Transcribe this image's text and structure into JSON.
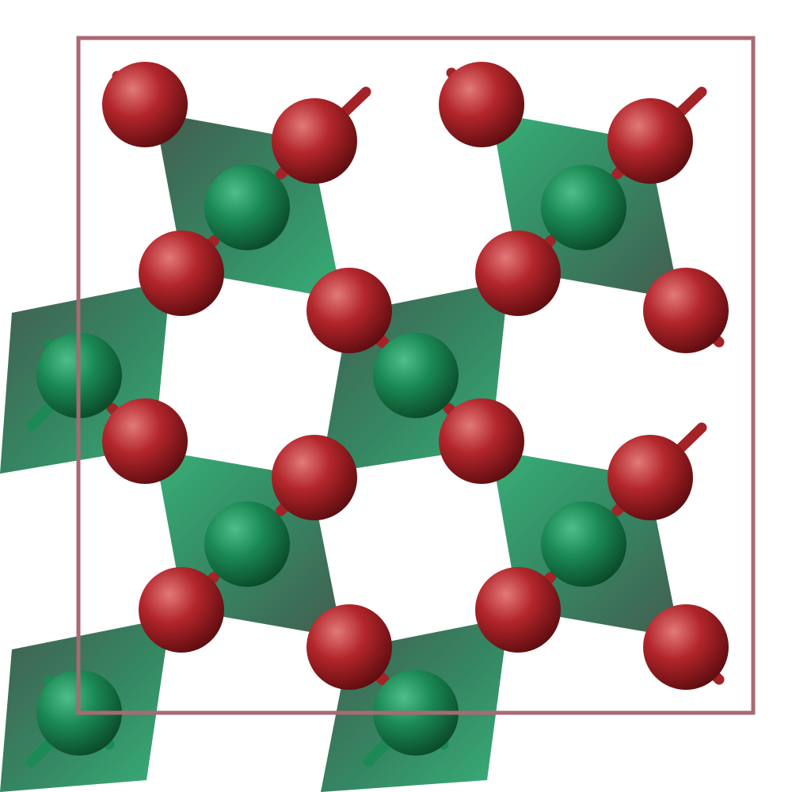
{
  "scene": {
    "type": "crystal-structure-polyhedral-view",
    "background": "#ffffff",
    "unit_cell_color": "#a86a72",
    "polyhedron_light": "#22a86a",
    "polyhedron_dark": "#2f4a3c",
    "metal_atom": {
      "label": "",
      "color_light": "#4fbf89",
      "color_mid": "#1b8a55",
      "color_dark": "#0b4a2a"
    },
    "oxygen_atom": {
      "label": "",
      "color_light": "#e27a7a",
      "color_mid": "#b3262b",
      "color_dark": "#5e0d10"
    },
    "legend": []
  }
}
